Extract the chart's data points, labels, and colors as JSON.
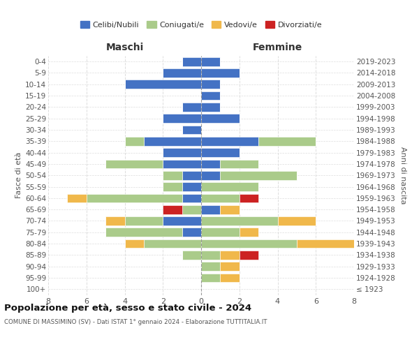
{
  "age_groups": [
    "100+",
    "95-99",
    "90-94",
    "85-89",
    "80-84",
    "75-79",
    "70-74",
    "65-69",
    "60-64",
    "55-59",
    "50-54",
    "45-49",
    "40-44",
    "35-39",
    "30-34",
    "25-29",
    "20-24",
    "15-19",
    "10-14",
    "5-9",
    "0-4"
  ],
  "birth_years": [
    "≤ 1923",
    "1924-1928",
    "1929-1933",
    "1934-1938",
    "1939-1943",
    "1944-1948",
    "1949-1953",
    "1954-1958",
    "1959-1963",
    "1964-1968",
    "1969-1973",
    "1974-1978",
    "1979-1983",
    "1984-1988",
    "1989-1993",
    "1994-1998",
    "1999-2003",
    "2004-2008",
    "2009-2013",
    "2014-2018",
    "2019-2023"
  ],
  "colors": {
    "celibi": "#4472C4",
    "coniugati": "#AACB8A",
    "vedovi": "#F0B84B",
    "divorziati": "#CC2222"
  },
  "maschi": {
    "celibi": [
      0,
      0,
      0,
      0,
      0,
      1,
      2,
      0,
      1,
      1,
      1,
      2,
      2,
      3,
      1,
      2,
      1,
      0,
      4,
      2,
      1
    ],
    "coniugati": [
      0,
      0,
      0,
      1,
      3,
      4,
      2,
      1,
      5,
      1,
      1,
      3,
      0,
      1,
      0,
      0,
      0,
      0,
      0,
      0,
      0
    ],
    "vedovi": [
      0,
      0,
      0,
      0,
      1,
      0,
      1,
      0,
      1,
      0,
      0,
      0,
      0,
      0,
      0,
      0,
      0,
      0,
      0,
      0,
      0
    ],
    "divorziati": [
      0,
      0,
      0,
      0,
      0,
      0,
      0,
      1,
      0,
      0,
      0,
      0,
      0,
      0,
      0,
      0,
      0,
      0,
      0,
      0,
      0
    ]
  },
  "femmine": {
    "celibi": [
      0,
      0,
      0,
      0,
      0,
      0,
      0,
      1,
      0,
      0,
      1,
      1,
      2,
      3,
      0,
      2,
      1,
      1,
      1,
      2,
      1
    ],
    "coniugati": [
      0,
      1,
      1,
      1,
      5,
      2,
      4,
      0,
      2,
      3,
      4,
      2,
      0,
      3,
      0,
      0,
      0,
      0,
      0,
      0,
      0
    ],
    "vedovi": [
      0,
      1,
      1,
      1,
      3,
      1,
      2,
      1,
      0,
      0,
      0,
      0,
      0,
      0,
      0,
      0,
      0,
      0,
      0,
      0,
      0
    ],
    "divorziati": [
      0,
      0,
      0,
      1,
      0,
      0,
      0,
      0,
      1,
      0,
      0,
      0,
      0,
      0,
      0,
      0,
      0,
      0,
      0,
      0,
      0
    ]
  },
  "title": "Popolazione per età, sesso e stato civile - 2024",
  "subtitle": "COMUNE DI MASSIMINO (SV) - Dati ISTAT 1° gennaio 2024 - Elaborazione TUTTITALIA.IT",
  "xlabel_left": "Maschi",
  "xlabel_right": "Femmine",
  "ylabel_left": "Fasce di età",
  "ylabel_right": "Anni di nascita",
  "xlim": 8,
  "legend_labels": [
    "Celibi/Nubili",
    "Coniugati/e",
    "Vedovi/e",
    "Divorziati/e"
  ],
  "background_color": "#FFFFFF",
  "grid_color": "#DDDDDD"
}
